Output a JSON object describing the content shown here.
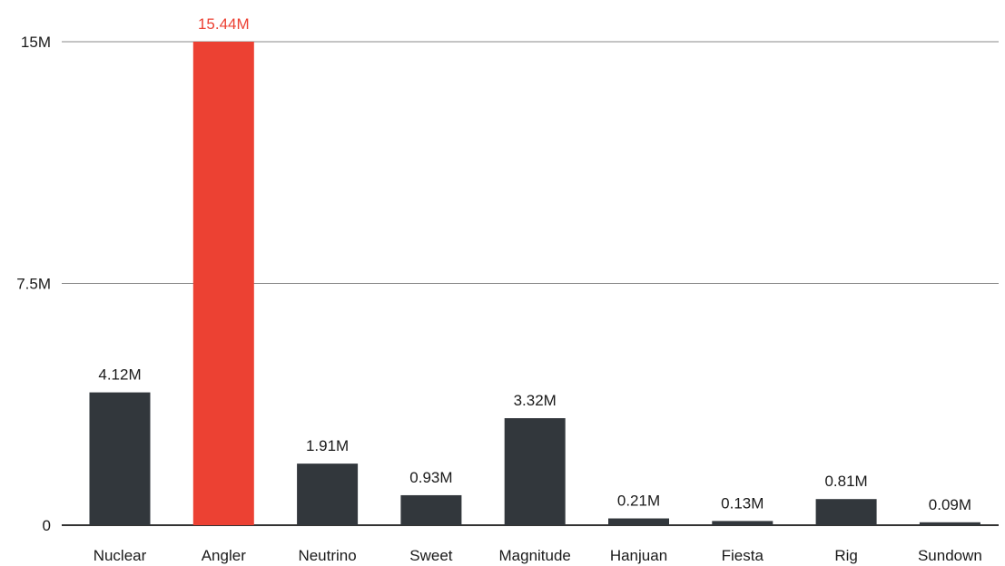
{
  "chart_data": {
    "type": "bar",
    "categories": [
      "Nuclear",
      "Angler",
      "Neutrino",
      "Sweet",
      "Magnitude",
      "Hanjuan",
      "Fiesta",
      "Rig",
      "Sundown"
    ],
    "values": [
      4.12,
      15.44,
      1.91,
      0.93,
      3.32,
      0.21,
      0.13,
      0.81,
      0.09
    ],
    "value_labels": [
      "4.12M",
      "15.44M",
      "1.91M",
      "0.93M",
      "3.32M",
      "0.21M",
      "0.13M",
      "0.81M",
      "0.09M"
    ],
    "unit": "M",
    "y_ticks": [
      0,
      7.5,
      15
    ],
    "y_tick_labels": [
      "0",
      "7.5M",
      "15M"
    ],
    "ylim": [
      0,
      15
    ],
    "grid": true,
    "legend": "none",
    "title": "",
    "xlabel": "",
    "ylabel": "",
    "highlight_index": 1,
    "colors": {
      "bar": "#32373c",
      "highlight": "#ec4133",
      "highlight_label": "#ec4133",
      "label": "#1a1a1a",
      "grid": "#8a8a8a",
      "axis": "#333333"
    }
  }
}
